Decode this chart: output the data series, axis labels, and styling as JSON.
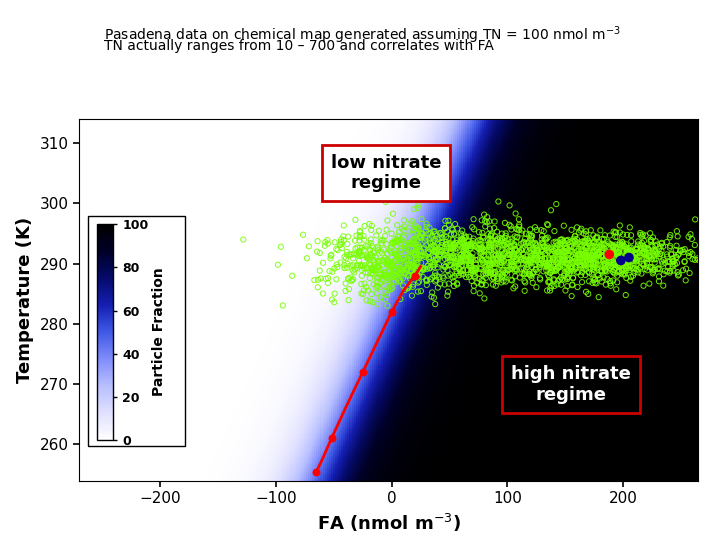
{
  "title_line1": "Pasadena data on chemical map generated assuming TN = 100 nmol m$^{-3}$",
  "title_line2": "TN actually ranges from 10 – 700 and correlates with FA",
  "xlabel": "FA (nmol m$^{-3}$)",
  "ylabel": "Temperature (K)",
  "colorbar_label": "Particle Fraction",
  "colorbar_ticks": [
    0,
    20,
    40,
    60,
    80,
    100
  ],
  "xlim": [
    -270,
    265
  ],
  "ylim": [
    254,
    314
  ],
  "temp_range": [
    254,
    314
  ],
  "fa_range": [
    -270,
    265
  ],
  "bg_color": "#ffffff",
  "annotation_low": "low nitrate\nregime",
  "annotation_high": "high nitrate\nregime",
  "scatter_color": "#77ff00"
}
